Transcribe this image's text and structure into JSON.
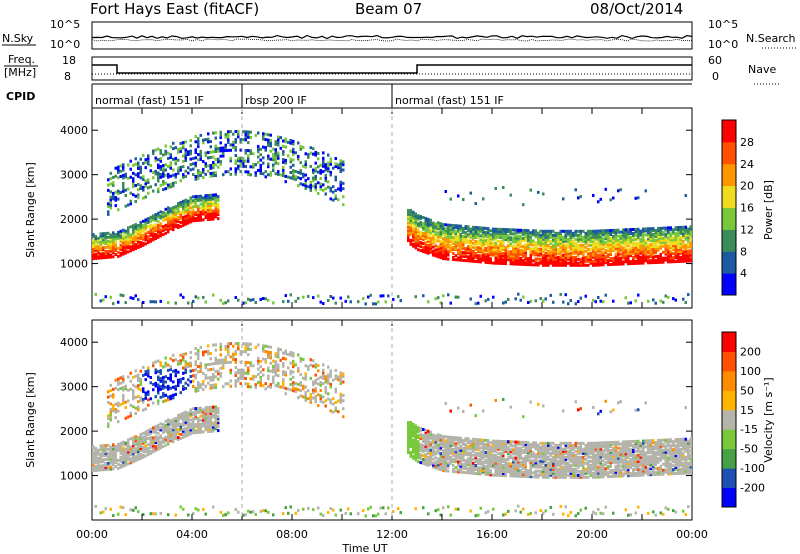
{
  "header": {
    "title": "Fort Hays East (fitACF)",
    "beam": "Beam 07",
    "date": "08/Oct/2014"
  },
  "noise_panel": {
    "left_label": "N.Sky",
    "right_label": "N.Search",
    "left_ticks": [
      "10^5",
      "10^0"
    ],
    "right_ticks": [
      "10^5",
      "10^0"
    ]
  },
  "freq_panel": {
    "left_label_line1": "Freq.",
    "left_label_line2": "[MHz]",
    "right_label": "Nave",
    "left_ticks": [
      "18",
      "8"
    ],
    "right_ticks": [
      "60",
      "0"
    ],
    "freq_series": [
      [
        0,
        15.5
      ],
      [
        1.0,
        15.5
      ],
      [
        1.0,
        11.5
      ],
      [
        13.0,
        11.5
      ],
      [
        13.0,
        15.5
      ],
      [
        24,
        15.5
      ]
    ]
  },
  "cpid": {
    "label": "CPID",
    "segments": [
      {
        "start": 0,
        "end": 6,
        "name": "normal (fast) 151 IF"
      },
      {
        "start": 6,
        "end": 12,
        "name": "rbsp 200 IF"
      },
      {
        "start": 12,
        "end": 24,
        "name": "normal (fast) 151 IF"
      }
    ]
  },
  "chart_data": [
    {
      "type": "heatmap",
      "xlabel": "Time UT",
      "ylabel": "Slant Range [km]",
      "xlim": [
        0,
        24
      ],
      "ylim": [
        0,
        4500
      ],
      "xticks": [
        "00:00",
        "04:00",
        "08:00",
        "12:00",
        "16:00",
        "20:00",
        "00:00"
      ],
      "yticks": [
        1000,
        2000,
        3000,
        4000
      ],
      "colorbar": {
        "label": "Power [dB]",
        "ticks": [
          "28",
          "24",
          "20",
          "16",
          "12",
          "8",
          "4"
        ],
        "colors": [
          "#0000ff",
          "#1e5aa0",
          "#3c8c5a",
          "#78c83c",
          "#f0dc1e",
          "#ff9600",
          "#ff5000",
          "#ff0000"
        ]
      },
      "features": [
        {
          "desc": "strong echo band",
          "t": [
            0,
            1,
            2,
            3,
            4,
            5
          ],
          "range": [
            1200,
            1250,
            1500,
            1800,
            2050,
            2100
          ]
        },
        {
          "desc": "strong echo band",
          "t": [
            12.5,
            13,
            14,
            16,
            18,
            20,
            22,
            24
          ],
          "range": [
            1600,
            1400,
            1200,
            1100,
            1050,
            1050,
            1100,
            1150
          ]
        }
      ]
    },
    {
      "type": "heatmap",
      "xlabel": "Time UT",
      "ylabel": "Slant Range [km]",
      "xlim": [
        0,
        24
      ],
      "ylim": [
        0,
        4500
      ],
      "xticks": [
        "00:00",
        "04:00",
        "08:00",
        "12:00",
        "16:00",
        "20:00",
        "00:00"
      ],
      "yticks": [
        1000,
        2000,
        3000,
        4000
      ],
      "colorbar": {
        "label": "Velocity [m s⁻¹]",
        "ticks": [
          "200",
          "100",
          "50",
          "15",
          "-15",
          "-50",
          "-100",
          "-200"
        ],
        "colors": [
          "#0000ff",
          "#1e50b4",
          "#46a046",
          "#78c83c",
          "#b4b4aa",
          "#ffb400",
          "#ff8c00",
          "#ff5000",
          "#ff0000"
        ]
      }
    }
  ],
  "colors": {
    "ground_scatter": "#b4b4aa"
  }
}
